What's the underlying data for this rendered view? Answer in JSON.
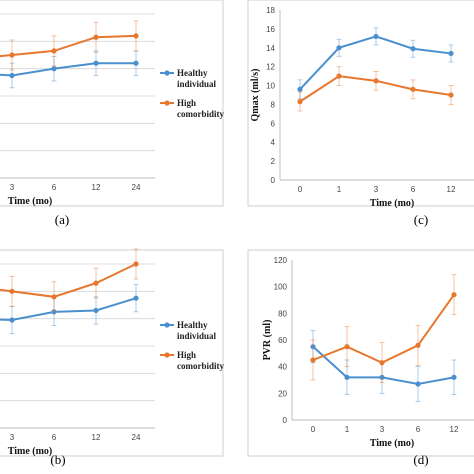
{
  "colors": {
    "healthy": "#4a90d0",
    "high": "#e8772e",
    "grid": "#dcdcdc",
    "panel_border": "#cfcfcf"
  },
  "chart_data": [
    {
      "type": "line",
      "panel_label": "(a)",
      "xlabel": "Time (mo)",
      "ylabel": "",
      "categories": [
        "3",
        "6",
        "12",
        "24"
      ],
      "ylim": [
        0,
        12
      ],
      "yticks": [],
      "grid": true,
      "legend": {
        "placement": "right",
        "entries": [
          [
            "Healthy",
            "individual"
          ],
          [
            "High",
            "comorbidity"
          ]
        ]
      },
      "series": [
        {
          "name": "Healthy individual",
          "color_key": "healthy",
          "values": [
            7.5,
            8.0,
            8.4,
            8.4
          ],
          "err": [
            0.9,
            0.9,
            0.9,
            0.9
          ]
        },
        {
          "name": "High comorbidity",
          "color_key": "high",
          "values": [
            9.0,
            9.3,
            10.3,
            10.4
          ],
          "err": [
            1.1,
            1.1,
            1.1,
            1.1
          ]
        }
      ]
    },
    {
      "type": "line",
      "panel_label": "(b)",
      "xlabel": "Time (mo)",
      "ylabel": "",
      "categories": [
        "3",
        "6",
        "12",
        "24"
      ],
      "ylim": [
        0,
        12
      ],
      "yticks": [],
      "grid": true,
      "legend": {
        "placement": "right",
        "entries": [
          [
            "Healthy",
            "individual"
          ],
          [
            "High",
            "comorbidity"
          ]
        ]
      },
      "series": [
        {
          "name": "Healthy individual",
          "color_key": "healthy",
          "values": [
            7.9,
            8.5,
            8.6,
            9.5
          ],
          "err": [
            1.0,
            1.0,
            1.0,
            1.0
          ]
        },
        {
          "name": "High comorbidity",
          "color_key": "high",
          "values": [
            10.0,
            9.6,
            10.6,
            12.0
          ],
          "err": [
            1.1,
            1.1,
            1.1,
            1.1
          ]
        }
      ]
    },
    {
      "type": "line",
      "panel_label": "(c)",
      "xlabel": "Time (mo)",
      "ylabel": "Qmax (ml/s)",
      "categories": [
        "0",
        "1",
        "3",
        "6",
        "12"
      ],
      "ylim": [
        0,
        18
      ],
      "yticks": [
        0,
        2,
        4,
        6,
        8,
        10,
        12,
        14,
        16,
        18
      ],
      "grid": false,
      "series": [
        {
          "name": "",
          "color_key": "healthy",
          "values": [
            9.6,
            14.0,
            15.2,
            13.9,
            13.4
          ],
          "err": [
            1.0,
            0.9,
            0.9,
            0.9,
            0.9
          ]
        },
        {
          "name": "",
          "color_key": "high",
          "values": [
            8.3,
            11.0,
            10.5,
            9.6,
            9.0
          ],
          "err": [
            1.0,
            1.0,
            1.0,
            1.0,
            1.0
          ]
        }
      ]
    },
    {
      "type": "line",
      "panel_label": "(d)",
      "xlabel": "Time (mo)",
      "ylabel": "PVR (ml)",
      "categories": [
        "0",
        "1",
        "3",
        "6",
        "12"
      ],
      "ylim": [
        0,
        120
      ],
      "yticks": [
        0,
        20,
        40,
        60,
        80,
        100,
        120
      ],
      "grid": false,
      "series": [
        {
          "name": "",
          "color_key": "healthy",
          "values": [
            55,
            32,
            32,
            27,
            32
          ],
          "err": [
            12,
            13,
            12,
            13,
            13
          ]
        },
        {
          "name": "",
          "color_key": "high",
          "values": [
            45,
            55,
            43,
            56,
            94
          ],
          "err": [
            15,
            15,
            15,
            15,
            15
          ]
        }
      ]
    }
  ]
}
